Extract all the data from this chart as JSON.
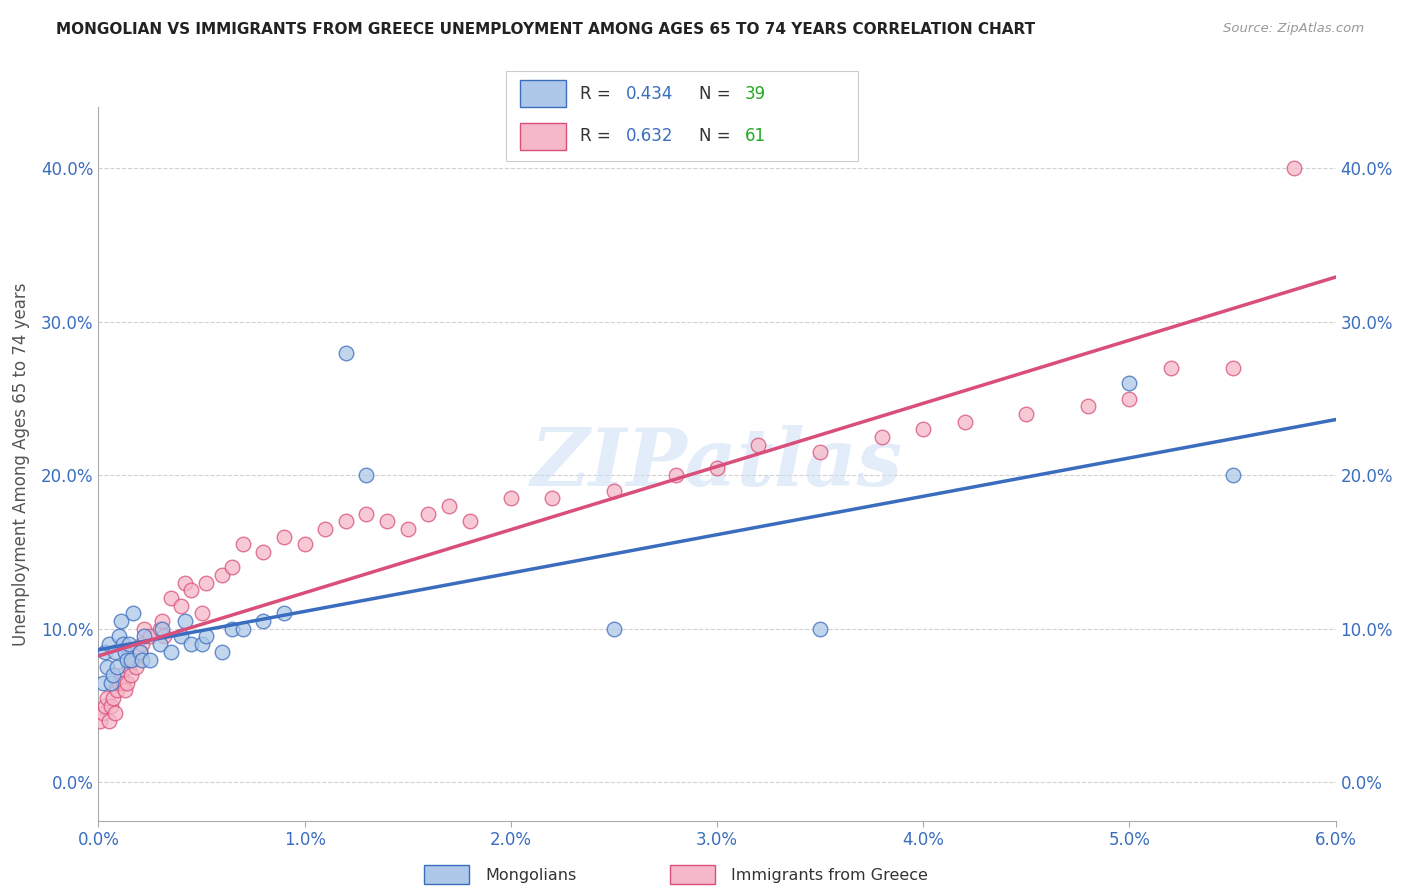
{
  "title": "MONGOLIAN VS IMMIGRANTS FROM GREECE UNEMPLOYMENT AMONG AGES 65 TO 74 YEARS CORRELATION CHART",
  "source": "Source: ZipAtlas.com",
  "ylabel": "Unemployment Among Ages 65 to 74 years",
  "xlim": [
    0.0,
    0.06
  ],
  "ylim": [
    -0.02,
    0.44
  ],
  "xticks": [
    0.0,
    0.01,
    0.02,
    0.03,
    0.04,
    0.05,
    0.06
  ],
  "yticks": [
    0.0,
    0.1,
    0.2,
    0.3,
    0.4
  ],
  "mongolian_color": "#adc8e8",
  "greece_color": "#f5b8c8",
  "mongolian_line_color": "#3b6dbf",
  "greece_line_color": "#d94f7a",
  "mongolian_R": 0.434,
  "mongolian_N": 39,
  "greece_R": 0.632,
  "greece_N": 61,
  "watermark": "ZIPatlas",
  "n_color": "#22aa22",
  "mongolian_x": [
    0.0002,
    0.0003,
    0.0004,
    0.0005,
    0.0006,
    0.0007,
    0.0008,
    0.0009,
    0.001,
    0.0011,
    0.0012,
    0.0013,
    0.0014,
    0.0015,
    0.0016,
    0.0017,
    0.002,
    0.0021,
    0.0022,
    0.0025,
    0.003,
    0.0031,
    0.0035,
    0.004,
    0.0042,
    0.0045,
    0.005,
    0.0052,
    0.006,
    0.0065,
    0.007,
    0.008,
    0.009,
    0.012,
    0.013,
    0.025,
    0.035,
    0.05,
    0.055
  ],
  "mongolian_y": [
    0.065,
    0.085,
    0.075,
    0.09,
    0.065,
    0.07,
    0.085,
    0.075,
    0.095,
    0.105,
    0.09,
    0.085,
    0.08,
    0.09,
    0.08,
    0.11,
    0.085,
    0.08,
    0.095,
    0.08,
    0.09,
    0.1,
    0.085,
    0.095,
    0.105,
    0.09,
    0.09,
    0.095,
    0.085,
    0.1,
    0.1,
    0.105,
    0.11,
    0.28,
    0.2,
    0.1,
    0.1,
    0.26,
    0.2
  ],
  "greece_x": [
    0.0001,
    0.0002,
    0.0003,
    0.0004,
    0.0005,
    0.0006,
    0.0007,
    0.0008,
    0.0009,
    0.001,
    0.0011,
    0.0012,
    0.0013,
    0.0014,
    0.0015,
    0.0016,
    0.0017,
    0.0018,
    0.002,
    0.0021,
    0.0022,
    0.0025,
    0.003,
    0.0031,
    0.0032,
    0.0035,
    0.004,
    0.0042,
    0.0045,
    0.005,
    0.0052,
    0.006,
    0.0065,
    0.007,
    0.008,
    0.009,
    0.01,
    0.011,
    0.012,
    0.013,
    0.014,
    0.015,
    0.016,
    0.017,
    0.018,
    0.02,
    0.022,
    0.025,
    0.028,
    0.03,
    0.032,
    0.035,
    0.038,
    0.04,
    0.042,
    0.045,
    0.048,
    0.05,
    0.052,
    0.055,
    0.058
  ],
  "greece_y": [
    0.04,
    0.045,
    0.05,
    0.055,
    0.04,
    0.05,
    0.055,
    0.045,
    0.06,
    0.065,
    0.07,
    0.065,
    0.06,
    0.065,
    0.075,
    0.07,
    0.08,
    0.075,
    0.085,
    0.09,
    0.1,
    0.095,
    0.1,
    0.105,
    0.095,
    0.12,
    0.115,
    0.13,
    0.125,
    0.11,
    0.13,
    0.135,
    0.14,
    0.155,
    0.15,
    0.16,
    0.155,
    0.165,
    0.17,
    0.175,
    0.17,
    0.165,
    0.175,
    0.18,
    0.17,
    0.185,
    0.185,
    0.19,
    0.2,
    0.205,
    0.22,
    0.215,
    0.225,
    0.23,
    0.235,
    0.24,
    0.245,
    0.25,
    0.27,
    0.27,
    0.4
  ]
}
